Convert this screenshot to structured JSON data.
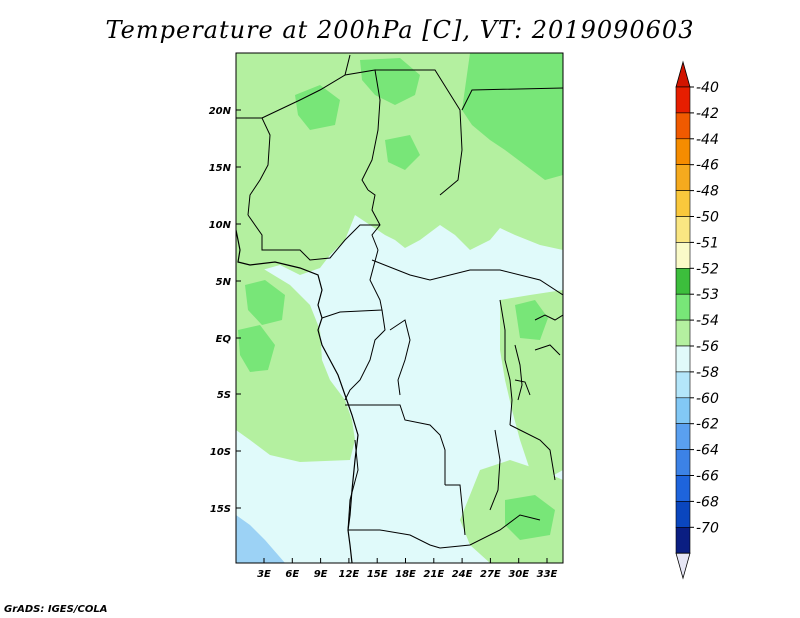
{
  "title": "Temperature at 200hPa [C], VT: 2019090603",
  "credit": "GrADS: IGES/COLA",
  "map": {
    "lat_labels": [
      "20N",
      "15N",
      "10N",
      "5N",
      "EQ",
      "5S",
      "10S",
      "15S"
    ],
    "lon_labels": [
      "3E",
      "6E",
      "9E",
      "12E",
      "15E",
      "18E",
      "21E",
      "24E",
      "27E",
      "30E",
      "33E"
    ]
  },
  "colorbar": {
    "levels": [
      "-40",
      "-42",
      "-44",
      "-46",
      "-48",
      "-50",
      "-51",
      "-52",
      "-53",
      "-54",
      "-56",
      "-58",
      "-60",
      "-62",
      "-64",
      "-66",
      "-68",
      "-70"
    ],
    "colors": [
      "#e61e00",
      "#f05a00",
      "#f58c00",
      "#f5aa1e",
      "#fac83c",
      "#fae682",
      "#fafac8",
      "#3cbe3c",
      "#78e678",
      "#b4f0a0",
      "#e0fafa",
      "#b4e6fa",
      "#82c8f5",
      "#5aa0f0",
      "#3c82e6",
      "#1e64dc",
      "#0a46be",
      "#0a1e82",
      "#e6e6f5"
    ],
    "top_color": "#d21400",
    "bottom_color": "#e6e6f5"
  },
  "colors": {
    "field_base": "#e0fafa",
    "field_53": "#b4f0a0",
    "field_52": "#78e678",
    "field_cold": "#9cd2f5",
    "border": "#000000"
  }
}
